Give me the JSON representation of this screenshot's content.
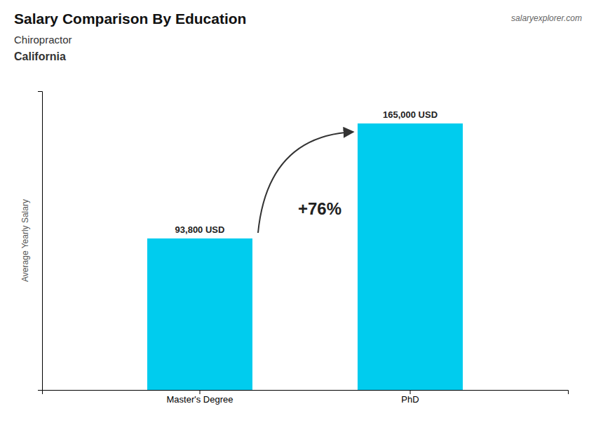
{
  "chart_data": {
    "type": "bar",
    "title": "Salary Comparison By Education",
    "subtitle": [
      "Chiropractor",
      "California"
    ],
    "ylabel": "Average Yearly Salary",
    "categories": [
      "Master's Degree",
      "PhD"
    ],
    "values": [
      93800,
      165000
    ],
    "value_labels": [
      "93,800 USD",
      "165,000 USD"
    ],
    "data_labels": true,
    "color": "#00ccee",
    "ylim": [
      0,
      185000
    ],
    "tick_labels": "x",
    "annotations": [
      "+76%",
      "salaryexplorer.com"
    ]
  }
}
